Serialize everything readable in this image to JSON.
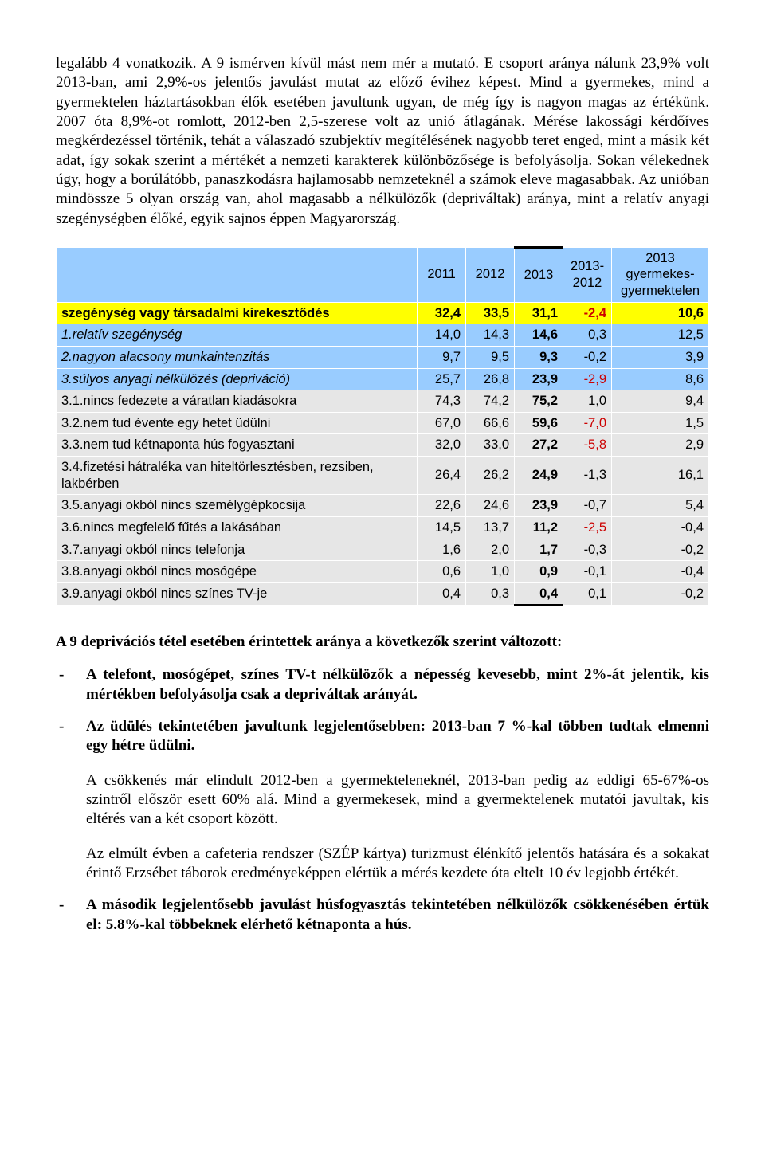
{
  "intro_paragraph": "legalább 4 vonatkozik. A 9 ismérven kívül mást nem mér a mutató. E csoport aránya nálunk 23,9% volt 2013-ban, ami 2,9%-os jelentős javulást mutat az előző évihez képest. Mind a gyermekes, mind a gyermektelen háztartásokban élők esetében javultunk ugyan, de még így is nagyon magas az értékünk. 2007 óta 8,9%-ot romlott, 2012-ben 2,5-szerese volt az unió átlagának. Mérése lakossági kérdőíves megkérdezéssel történik, tehát a válaszadó szubjektív megítélésének nagyobb teret enged, mint a másik két adat, így sokak szerint a mértékét a nemzeti karakterek különbözősége is befolyásolja. Sokan vélekednek úgy, hogy a borúlátóbb, panaszkodásra hajlamosabb nemzeteknél a számok eleve magasabbak. Az unióban mindössze 5 olyan ország van, ahol magasabb a nélkülözők (depriváltak) aránya, mint a relatív anyagi szegénységben élőké, egyik sajnos éppen Magyarország.",
  "table": {
    "headers": {
      "c1": "2011",
      "c2": "2012",
      "c3": "2013",
      "c4": "2013-2012",
      "c5": "2013 gyermekes-gyermektelen"
    },
    "rows": [
      {
        "style": "yellow",
        "bold": true,
        "label": "szegénység vagy társadalmi kirekesztődés",
        "v1": "32,4",
        "v2": "33,5",
        "v3": "31,1",
        "d": "-2,4",
        "dneg": true,
        "l": "10,6"
      },
      {
        "style": "blue",
        "bold": false,
        "italic": true,
        "label": "1.relatív szegénység",
        "v1": "14,0",
        "v2": "14,3",
        "v3": "14,6",
        "d": "0,3",
        "dneg": false,
        "l": "12,5"
      },
      {
        "style": "blue",
        "bold": false,
        "italic": true,
        "label": "2.nagyon alacsony munkaintenzitás",
        "v1": "9,7",
        "v2": "9,5",
        "v3": "9,3",
        "d": "-0,2",
        "dneg": false,
        "l": "3,9"
      },
      {
        "style": "blue",
        "bold": false,
        "italic": true,
        "label": "3.súlyos anyagi nélkülözés (depriváció)",
        "v1": "25,7",
        "v2": "26,8",
        "v3": "23,9",
        "d": "-2,9",
        "dneg": true,
        "l": "8,6"
      },
      {
        "style": "grey",
        "bold": false,
        "label": "3.1.nincs fedezete a váratlan kiadásokra",
        "v1": "74,3",
        "v2": "74,2",
        "v3": "75,2",
        "d": "1,0",
        "dneg": false,
        "l": "9,4"
      },
      {
        "style": "grey",
        "bold": false,
        "label": "3.2.nem tud évente egy hetet üdülni",
        "v1": "67,0",
        "v2": "66,6",
        "v3": "59,6",
        "d": "-7,0",
        "dneg": true,
        "l": "1,5"
      },
      {
        "style": "grey",
        "bold": false,
        "label": "3.3.nem tud kétnaponta hús fogyasztani",
        "v1": "32,0",
        "v2": "33,0",
        "v3": "27,2",
        "d": "-5,8",
        "dneg": true,
        "l": "2,9"
      },
      {
        "style": "grey",
        "bold": false,
        "label": "3.4.fizetési hátraléka van hiteltörlesztésben, rezsiben, lakbérben",
        "v1": "26,4",
        "v2": "26,2",
        "v3": "24,9",
        "d": "-1,3",
        "dneg": false,
        "l": "16,1"
      },
      {
        "style": "grey",
        "bold": false,
        "label": "3.5.anyagi okból nincs személygépkocsija",
        "v1": "22,6",
        "v2": "24,6",
        "v3": "23,9",
        "d": "-0,7",
        "dneg": false,
        "l": "5,4"
      },
      {
        "style": "grey",
        "bold": false,
        "label": "3.6.nincs megfelelő fűtés a lakásában",
        "v1": "14,5",
        "v2": "13,7",
        "v3": "11,2",
        "d": "-2,5",
        "dneg": true,
        "l": "-0,4"
      },
      {
        "style": "grey",
        "bold": false,
        "label": "3.7.anyagi okból nincs telefonja",
        "v1": "1,6",
        "v2": "2,0",
        "v3": "1,7",
        "d": "-0,3",
        "dneg": false,
        "l": "-0,2"
      },
      {
        "style": "grey",
        "bold": false,
        "label": "3.8.anyagi okból nincs mosógépe",
        "v1": "0,6",
        "v2": "1,0",
        "v3": "0,9",
        "d": "-0,1",
        "dneg": false,
        "l": "-0,4"
      },
      {
        "style": "grey",
        "bold": false,
        "label": "3.9.anyagi okból nincs színes TV-je",
        "v1": "0,4",
        "v2": "0,3",
        "v3": "0,4",
        "d": "0,1",
        "dneg": false,
        "l": "-0,2"
      }
    ]
  },
  "section_heading": "A 9 deprivációs tétel esetében érintettek aránya a következők szerint változott:",
  "bullets": [
    {
      "bold": true,
      "text": "A telefont, mosógépet, színes TV-t nélkülözők a népesség kevesebb, mint 2%-át jelentik, kis mértékben befolyásolja csak a depriváltak arányát."
    },
    {
      "bold": true,
      "text": "Az üdülés tekintetében javultunk legjelentősebben: 2013-ban 7 %-kal többen tudtak elmenni egy hétre üdülni."
    }
  ],
  "sub_paragraphs": [
    "A csökkenés már elindult 2012-ben a gyermekteleneknél, 2013-ban pedig az eddigi 65-67%-os szintről először esett 60% alá. Mind a gyermekesek, mind a gyermektelenek mutatói javultak, kis eltérés van a két csoport között.",
    "Az elmúlt évben a cafeteria rendszer (SZÉP kártya) turizmust élénkítő jelentős hatására és a sokakat érintő Erzsébet táborok eredményeképpen elértük a mérés kezdete óta eltelt 10 év legjobb értékét."
  ],
  "final_bullet": {
    "bold": true,
    "text": "A második legjelentősebb javulást húsfogyasztás tekintetében nélkülözők csökkenésében értük el: 5.8%-kal többeknek elérhető kétnaponta a hús."
  }
}
